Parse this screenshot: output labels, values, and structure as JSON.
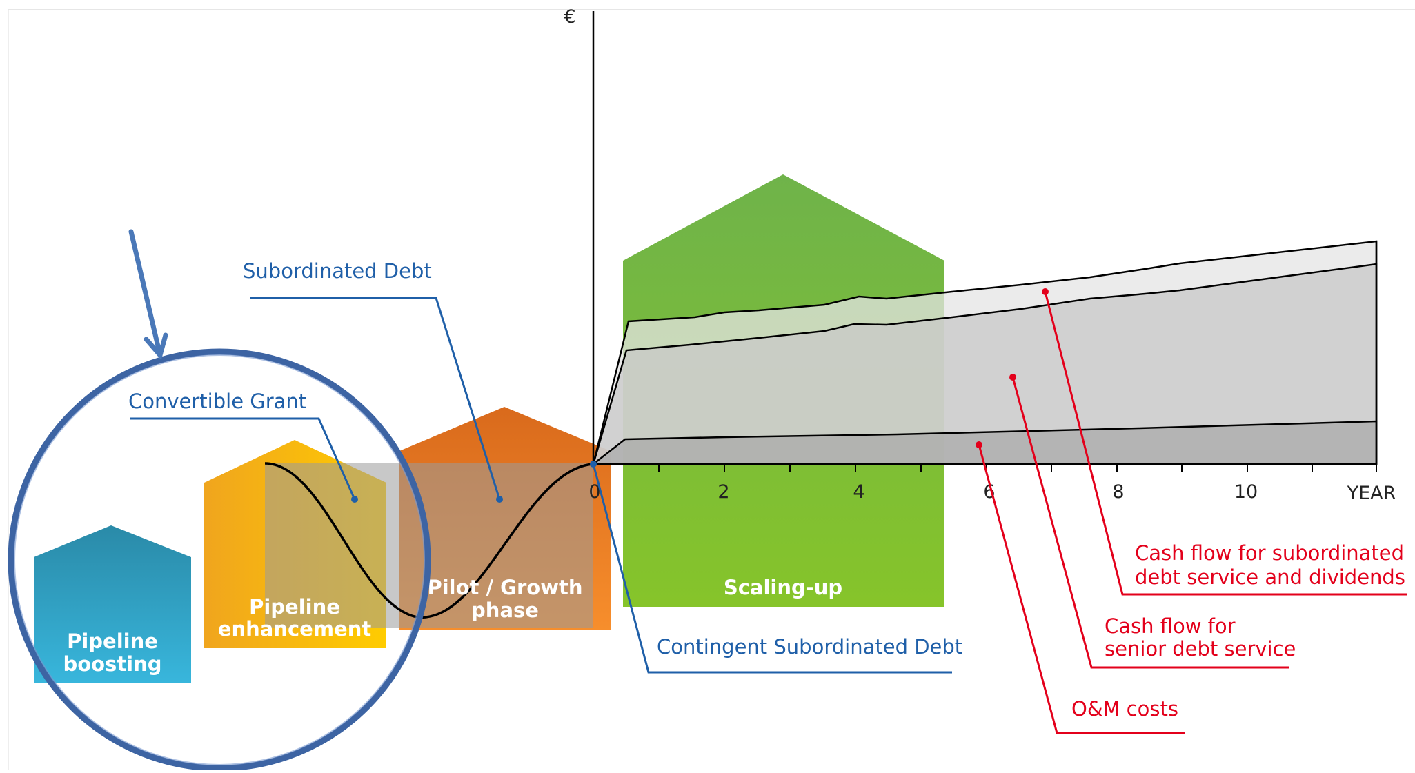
{
  "axis": {
    "y_label": "€",
    "x_label": "YEAR",
    "ticks": [
      "0",
      "2",
      "4",
      "6",
      "8",
      "10"
    ]
  },
  "phases": {
    "pipeline_boosting": [
      "Pipeline",
      "boosting"
    ],
    "pipeline_enhancement": [
      "Pipeline",
      "enhancement"
    ],
    "pilot_growth": [
      "Pilot / Growth",
      "phase"
    ],
    "scaling_up": [
      "Scaling-up"
    ]
  },
  "callouts": {
    "subordinated_debt": "Subordinated Debt",
    "convertible_grant": "Convertible Grant",
    "contingent_subordinated_debt": "Contingent Subordinated Debt",
    "cash_flow_subordinated": [
      "Cash flow for subordinated",
      "debt service and dividends"
    ],
    "cash_flow_senior": [
      "Cash flow for",
      "senior debt service"
    ],
    "om_costs": "O&M costs"
  },
  "colors": {
    "blue_callout": "#1f5fa8",
    "red_callout": "#e3001b",
    "phase_boosting": "#2e9bbb",
    "phase_enhancement": "#f5b50f",
    "phase_pilot": "#ef7d21",
    "phase_scaling": "#79b840",
    "highlight_circle": "#3d64a3"
  }
}
